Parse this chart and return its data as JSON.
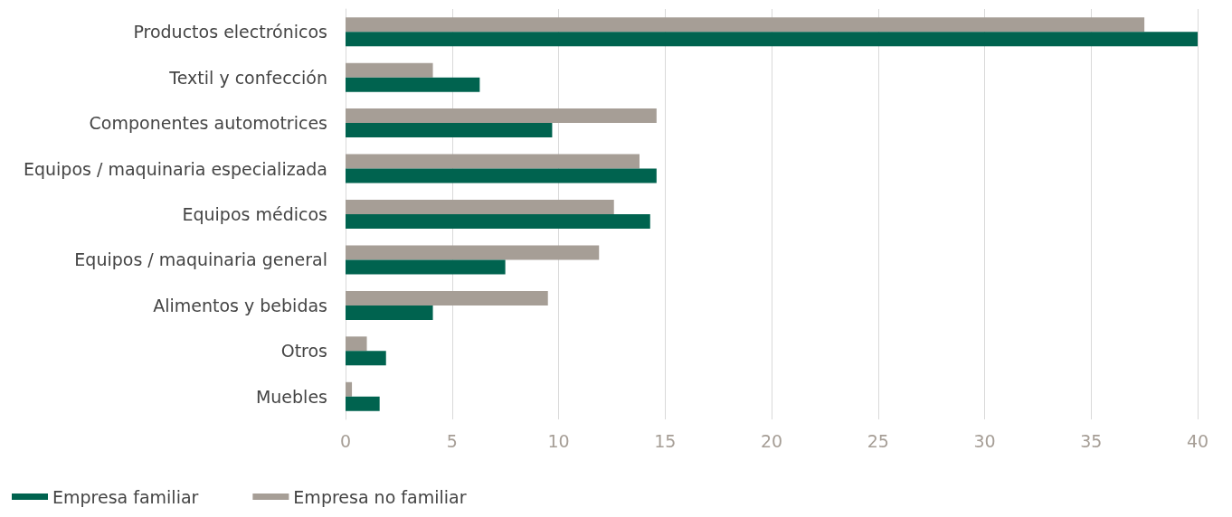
{
  "chart_data": {
    "type": "bar",
    "orientation": "horizontal",
    "categories": [
      "Productos electrónicos",
      "Textil y confección",
      "Componentes automotrices",
      "Equipos / maquinaria especializada",
      "Equipos médicos",
      "Equipos / maquinaria general",
      "Alimentos y bebidas",
      "Otros",
      "Muebles"
    ],
    "series": [
      {
        "name": "Empresa familiar",
        "color": "#00634f",
        "values": [
          40,
          6.3,
          9.7,
          14.6,
          14.3,
          7.5,
          4.1,
          1.9,
          1.6
        ]
      },
      {
        "name": "Empresa no familiar",
        "color": "#a69e96",
        "values": [
          37.5,
          4.1,
          14.6,
          13.8,
          12.6,
          11.9,
          9.5,
          1.0,
          0.3
        ]
      }
    ],
    "xlim": [
      0,
      40
    ],
    "xticks": [
      0,
      5,
      10,
      15,
      20,
      25,
      30,
      35,
      40
    ],
    "grid": "x",
    "legend": "bottom left"
  }
}
